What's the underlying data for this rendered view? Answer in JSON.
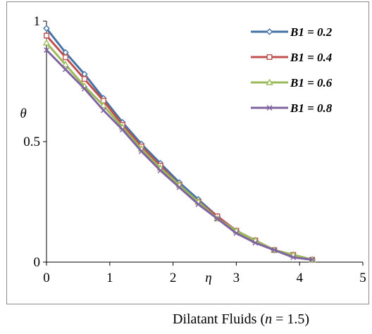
{
  "caption": {
    "prefix": "Dilatant Fluids (",
    "n_symbol": "n",
    "suffix": " = 1.5)"
  },
  "chart_data": {
    "type": "line",
    "title": "",
    "xlabel": "η",
    "ylabel": "θ",
    "xlim": [
      0,
      5
    ],
    "ylim": [
      0,
      1
    ],
    "x_ticks": [
      "0",
      "1",
      "2",
      "3",
      "4",
      "5"
    ],
    "y_ticks": [
      "0",
      "0.5",
      "1"
    ],
    "grid": false,
    "legend_position": "top-right",
    "x": [
      0,
      0.3,
      0.6,
      0.9,
      1.2,
      1.5,
      1.8,
      2.1,
      2.4,
      2.7,
      3.0,
      3.3,
      3.6,
      3.9,
      4.2
    ],
    "series": [
      {
        "name": "B1 = 0.2",
        "color": "#4572A7",
        "marker": "diamond",
        "values": [
          0.97,
          0.87,
          0.78,
          0.68,
          0.58,
          0.49,
          0.41,
          0.33,
          0.26,
          0.19,
          0.13,
          0.09,
          0.05,
          0.03,
          0.01
        ]
      },
      {
        "name": "B1 = 0.4",
        "color": "#C0504D",
        "marker": "square",
        "values": [
          0.94,
          0.85,
          0.76,
          0.67,
          0.57,
          0.48,
          0.4,
          0.32,
          0.25,
          0.19,
          0.13,
          0.09,
          0.05,
          0.03,
          0.01
        ]
      },
      {
        "name": "B1 = 0.6",
        "color": "#9BBB59",
        "marker": "triangle",
        "values": [
          0.91,
          0.82,
          0.73,
          0.65,
          0.56,
          0.47,
          0.39,
          0.32,
          0.25,
          0.18,
          0.13,
          0.09,
          0.05,
          0.03,
          0.01
        ]
      },
      {
        "name": "B1 = 0.8",
        "color": "#8064A2",
        "marker": "x",
        "values": [
          0.88,
          0.8,
          0.72,
          0.63,
          0.55,
          0.46,
          0.38,
          0.31,
          0.24,
          0.18,
          0.12,
          0.08,
          0.05,
          0.02,
          0.01
        ]
      }
    ]
  }
}
